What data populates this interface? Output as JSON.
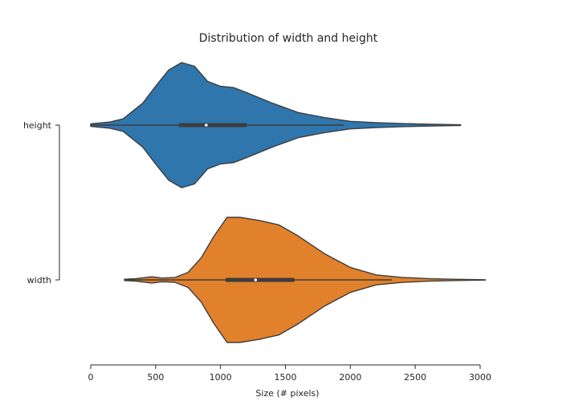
{
  "chart_data": {
    "type": "violin",
    "orientation": "horizontal",
    "title": "Distribution of width and height",
    "xlabel": "Size (# pixels)",
    "ylabel": "",
    "xlim": [
      0,
      3000
    ],
    "xticks": [
      0,
      500,
      1000,
      1500,
      2000,
      2500,
      3000
    ],
    "grid": false,
    "legend": "none",
    "series": [
      {
        "name": "height",
        "color": "#2f76ad",
        "extent": [
          0,
          2850
        ],
        "whisker": [
          0,
          1950
        ],
        "quartiles": [
          680,
          1200
        ],
        "median": 890,
        "density": [
          [
            0,
            0.02
          ],
          [
            150,
            0.05
          ],
          [
            250,
            0.1
          ],
          [
            400,
            0.35
          ],
          [
            500,
            0.62
          ],
          [
            600,
            0.88
          ],
          [
            700,
            1.0
          ],
          [
            800,
            0.94
          ],
          [
            900,
            0.7
          ],
          [
            1000,
            0.62
          ],
          [
            1100,
            0.6
          ],
          [
            1200,
            0.52
          ],
          [
            1400,
            0.35
          ],
          [
            1600,
            0.2
          ],
          [
            1800,
            0.12
          ],
          [
            2000,
            0.06
          ],
          [
            2200,
            0.04
          ],
          [
            2400,
            0.025
          ],
          [
            2600,
            0.015
          ],
          [
            2850,
            0.005
          ]
        ]
      },
      {
        "name": "width",
        "color": "#e1812c",
        "extent": [
          260,
          3040
        ],
        "whisker": [
          260,
          2320
        ],
        "quartiles": [
          1040,
          1570
        ],
        "median": 1270,
        "density": [
          [
            260,
            0.01
          ],
          [
            350,
            0.02
          ],
          [
            470,
            0.05
          ],
          [
            550,
            0.03
          ],
          [
            650,
            0.04
          ],
          [
            750,
            0.12
          ],
          [
            850,
            0.35
          ],
          [
            950,
            0.7
          ],
          [
            1050,
            1.0
          ],
          [
            1150,
            1.0
          ],
          [
            1300,
            0.95
          ],
          [
            1450,
            0.88
          ],
          [
            1600,
            0.7
          ],
          [
            1800,
            0.42
          ],
          [
            2000,
            0.2
          ],
          [
            2200,
            0.08
          ],
          [
            2400,
            0.04
          ],
          [
            2600,
            0.02
          ],
          [
            2800,
            0.01
          ],
          [
            3040,
            0.002
          ]
        ]
      }
    ]
  }
}
